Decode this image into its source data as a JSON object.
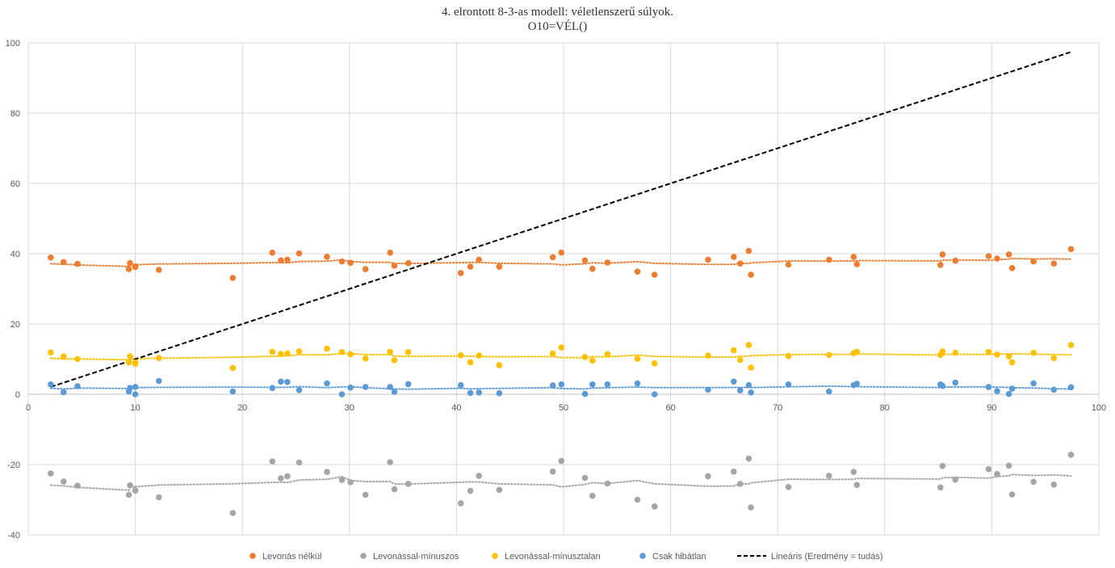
{
  "chart_data": {
    "type": "scatter",
    "title": "4. elrontott 8-3-as modell: véletlenszerű súlyok.",
    "subtitle": "O10=VÉL()",
    "xlabel": "",
    "ylabel": "",
    "xlim": [
      0,
      100
    ],
    "ylim": [
      -40,
      100
    ],
    "x_ticks": [
      "0",
      "10",
      "20",
      "30",
      "40",
      "50",
      "60",
      "70",
      "80",
      "90",
      "100"
    ],
    "y_ticks": [
      "100",
      "80",
      "60",
      "40",
      "20",
      "0",
      "-20",
      "-40"
    ],
    "grid": true,
    "legend_position": "bottom",
    "x": [
      2.1,
      3.3,
      4.6,
      9.4,
      9.5,
      10.0,
      10.0,
      12.2,
      19.1,
      22.8,
      23.6,
      24.2,
      25.3,
      27.9,
      29.3,
      30.1,
      31.5,
      33.8,
      34.2,
      35.5,
      40.4,
      41.3,
      42.1,
      44.0,
      49.0,
      49.8,
      52.0,
      52.7,
      54.1,
      56.9,
      58.5,
      63.5,
      65.9,
      66.5,
      67.3,
      67.5,
      71.0,
      74.8,
      77.1,
      77.4,
      85.2,
      85.4,
      86.6,
      89.7,
      90.5,
      91.6,
      91.9,
      93.9,
      95.8,
      97.4
    ],
    "series": [
      {
        "name": "Levonás nélkül",
        "color": "#ED7D31",
        "trend": "dotted",
        "values": [
          38.9,
          37.6,
          37.1,
          35.6,
          37.3,
          36.4,
          36.2,
          35.4,
          33.1,
          40.3,
          38.1,
          38.3,
          40.1,
          39.1,
          37.8,
          37.4,
          35.6,
          40.3,
          36.6,
          37.3,
          34.5,
          36.3,
          38.3,
          36.3,
          39.0,
          40.3,
          38.1,
          35.7,
          37.5,
          34.9,
          34.0,
          38.3,
          39.1,
          37.2,
          40.8,
          34.0,
          36.9,
          38.3,
          39.1,
          37.0,
          36.8,
          39.8,
          38.0,
          39.3,
          38.6,
          39.8,
          35.9,
          37.8,
          37.2,
          41.3
        ]
      },
      {
        "name": "Levonással-mínuszos",
        "color": "#A5A5A5",
        "trend": "dotted",
        "values": [
          -22.5,
          -24.8,
          -26.0,
          -28.6,
          -25.9,
          -27.4,
          -27.3,
          -29.3,
          -33.8,
          -19.1,
          -23.9,
          -23.3,
          -19.4,
          -22.1,
          -24.4,
          -25.0,
          -28.6,
          -19.3,
          -27.0,
          -25.5,
          -31.0,
          -27.5,
          -23.2,
          -27.2,
          -22.0,
          -19.0,
          -23.8,
          -28.9,
          -25.4,
          -30.0,
          -31.9,
          -23.3,
          -22.0,
          -25.5,
          -18.3,
          -32.2,
          -26.4,
          -23.2,
          -22.1,
          -25.8,
          -26.5,
          -20.4,
          -24.3,
          -21.3,
          -22.7,
          -20.3,
          -28.5,
          -24.9,
          -25.7,
          -17.2
        ]
      },
      {
        "name": "Levonással-mínusztalan",
        "color": "#FFC000",
        "trend": "dotted",
        "values": [
          11.9,
          10.8,
          10.0,
          9.1,
          10.8,
          9.1,
          8.7,
          10.3,
          7.5,
          12.1,
          11.5,
          11.6,
          12.2,
          13.0,
          12.0,
          11.4,
          10.2,
          12.1,
          9.7,
          12.0,
          11.1,
          9.1,
          11.0,
          8.3,
          11.6,
          13.3,
          10.6,
          9.6,
          11.4,
          10.1,
          8.8,
          11.0,
          12.5,
          9.8,
          14.0,
          7.6,
          10.9,
          11.2,
          11.7,
          12.1,
          11.2,
          12.2,
          11.8,
          12.1,
          11.3,
          10.8,
          9.1,
          11.8,
          10.3,
          14.0
        ]
      },
      {
        "name": "Csak hibátlan",
        "color": "#5B9BD5",
        "trend": "dotted",
        "values": [
          2.8,
          0.6,
          2.3,
          0.8,
          1.8,
          2.1,
          0.0,
          3.8,
          0.8,
          1.8,
          3.6,
          3.5,
          1.2,
          3.1,
          0.0,
          1.9,
          2.1,
          2.1,
          0.7,
          2.9,
          2.6,
          0.4,
          0.5,
          0.3,
          2.5,
          2.8,
          0.1,
          2.8,
          2.8,
          3.1,
          0.0,
          1.3,
          3.6,
          1.1,
          2.6,
          0.5,
          2.8,
          0.8,
          2.6,
          3.0,
          2.8,
          2.4,
          3.3,
          2.1,
          0.9,
          0.1,
          1.6,
          3.1,
          1.3,
          2.0
        ]
      }
    ],
    "trendline": {
      "name": "Lineáris (Eredmény = tudás)",
      "color": "#000000",
      "style": "dashed",
      "x": [
        2.1,
        97.4
      ],
      "y": [
        2.1,
        97.4
      ]
    }
  }
}
